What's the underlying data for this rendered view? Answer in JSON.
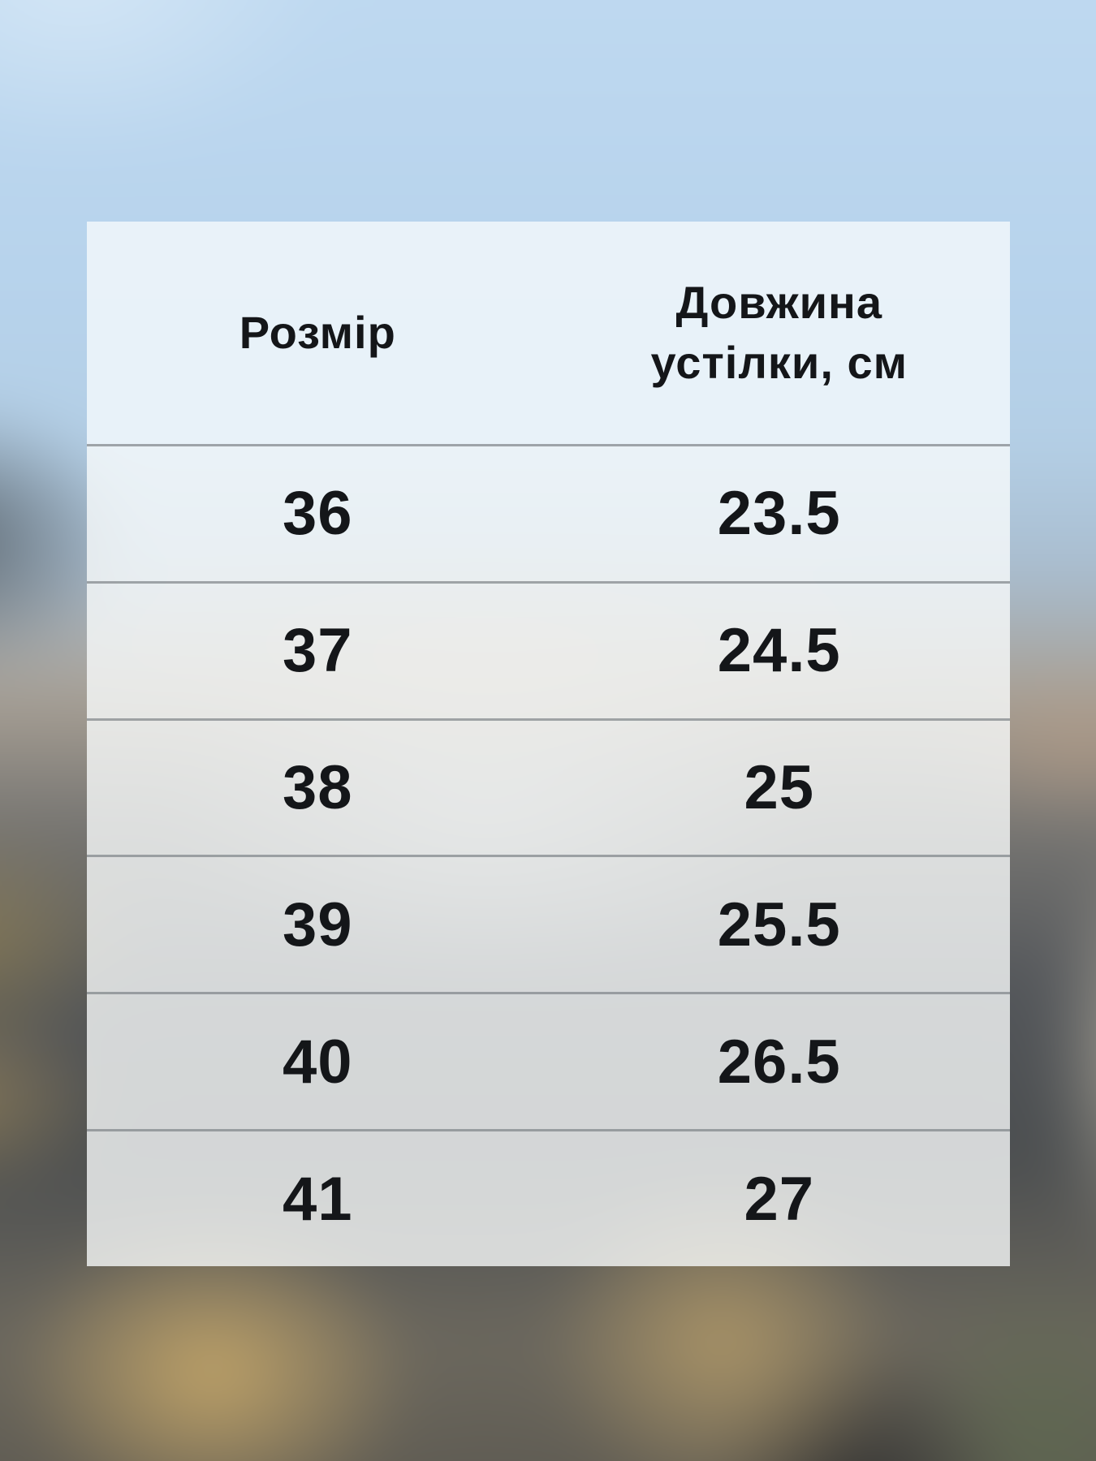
{
  "table": {
    "header": {
      "size_label": "Розмір",
      "length_label_line1": "Довжина",
      "length_label_line2": "устілки, см"
    },
    "rows": [
      {
        "size": "36",
        "length": "23.5"
      },
      {
        "size": "37",
        "length": "24.5"
      },
      {
        "size": "38",
        "length": "25"
      },
      {
        "size": "39",
        "length": "25.5"
      },
      {
        "size": "40",
        "length": "26.5"
      },
      {
        "size": "41",
        "length": "27"
      }
    ]
  },
  "colors": {
    "sky_background": "#bcd7ee",
    "header_background": "#ecf3f9",
    "row_background": "#eef0f2",
    "divider": "#a9aeb2",
    "text": "#141619"
  },
  "chart_data": {
    "type": "table",
    "title": "",
    "columns": [
      "Розмір",
      "Довжина устілки, см"
    ],
    "rows": [
      [
        36,
        23.5
      ],
      [
        37,
        24.5
      ],
      [
        38,
        25
      ],
      [
        39,
        25.5
      ],
      [
        40,
        26.5
      ],
      [
        41,
        27
      ]
    ]
  }
}
